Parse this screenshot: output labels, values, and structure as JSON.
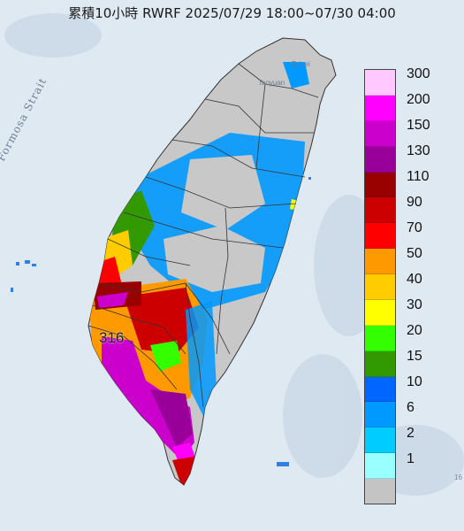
{
  "title": "累積10小時 RWRF 2025/07/29 18:00~07/30 04:00",
  "sea_label": "Formosa Strait",
  "cities": {
    "taipei": "Taipei",
    "taoyuan": "Taoyuan"
  },
  "peak_value": "316",
  "scale_fragment": "16",
  "legend": [
    {
      "label": "300",
      "color": "#ffc8ff"
    },
    {
      "label": "200",
      "color": "#ff00ff"
    },
    {
      "label": "150",
      "color": "#cc00cc"
    },
    {
      "label": "130",
      "color": "#990099"
    },
    {
      "label": "110",
      "color": "#990000"
    },
    {
      "label": "90",
      "color": "#cc0000"
    },
    {
      "label": "70",
      "color": "#ff0000"
    },
    {
      "label": "50",
      "color": "#ff9900"
    },
    {
      "label": "40",
      "color": "#ffcc00"
    },
    {
      "label": "30",
      "color": "#ffff00"
    },
    {
      "label": "20",
      "color": "#33ff00"
    },
    {
      "label": "15",
      "color": "#339900"
    },
    {
      "label": "10",
      "color": "#0066ff"
    },
    {
      "label": "6",
      "color": "#0099ff"
    },
    {
      "label": "2",
      "color": "#00ccff"
    },
    {
      "label": "1",
      "color": "#99ffff"
    },
    {
      "label": "",
      "color": "#c4c4c4"
    }
  ]
}
